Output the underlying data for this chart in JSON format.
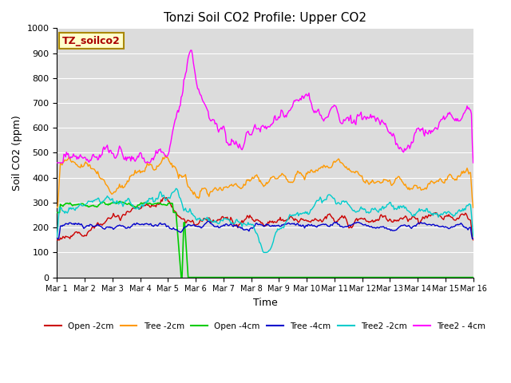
{
  "title": "Tonzi Soil CO2 Profile: Upper CO2",
  "ylabel": "Soil CO2 (ppm)",
  "xlabel": "Time",
  "ylim": [
    0,
    1000
  ],
  "xtick_labels": [
    "Mar 1",
    "Mar 2",
    "Mar 3",
    "Mar 4",
    "Mar 5",
    "Mar 6",
    "Mar 7",
    "Mar 8",
    "Mar 9",
    "Mar 10",
    "Mar 11",
    "Mar 12",
    "Mar 13",
    "Mar 14",
    "Mar 15",
    "Mar 16"
  ],
  "legend_labels": [
    "Open -2cm",
    "Tree -2cm",
    "Open -4cm",
    "Tree -4cm",
    "Tree2 -2cm",
    "Tree2 - 4cm"
  ],
  "legend_colors": [
    "#cc0000",
    "#ff9900",
    "#00cc00",
    "#0000cc",
    "#00cccc",
    "#ff00ff"
  ],
  "watermark_text": "TZ_soilco2",
  "title_fontsize": 11,
  "n_points": 480,
  "seed": 42
}
